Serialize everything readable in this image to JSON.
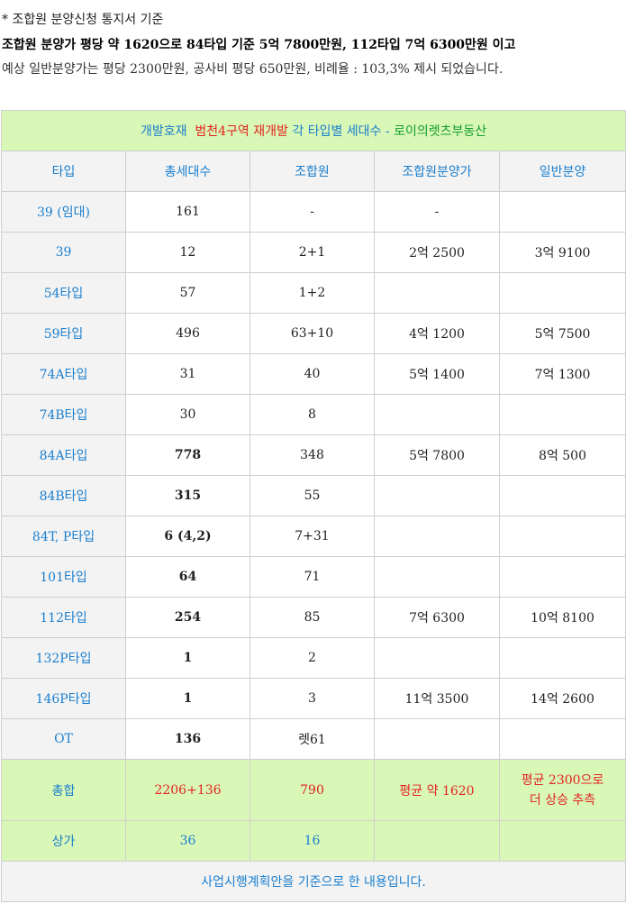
{
  "intro": {
    "line1": "* 조합원 분양신청 통지서 기준",
    "line2": "조합원 분양가 평당 약 1620으로 84타입 기준 5억 7800만원, 112타입 7억 6300만원 이고",
    "line3": "예상 일반분양가는 평당 2300만원, 공사비 평당 650만원, 비례율 : 103,3% 제시 되었습니다."
  },
  "table": {
    "title": {
      "part1": "개발호재",
      "part2": "범천4구역 재개발",
      "part3": "각 타입별 세대수 -",
      "part4": "로이의렛츠부동산"
    },
    "headers": [
      "타입",
      "총세대수",
      "조합원",
      "조합원분양가",
      "일반분양"
    ],
    "rows": [
      {
        "type": "39 (임대)",
        "total": "161",
        "member": "-",
        "member_price": "-",
        "general_price": ""
      },
      {
        "type": "39",
        "total": "12",
        "member": "2+1",
        "member_price": "2억 2500",
        "general_price": "3억 9100"
      },
      {
        "type": "54타입",
        "total": "57",
        "member": "1+2",
        "member_price": "",
        "general_price": ""
      },
      {
        "type": "59타입",
        "total": "496",
        "member": "63+10",
        "member_price": "4억 1200",
        "general_price": "5억 7500"
      },
      {
        "type": "74A타입",
        "total": "31",
        "member": "40",
        "member_price": "5억 1400",
        "general_price": "7억 1300"
      },
      {
        "type": "74B타입",
        "total": "30",
        "member": "8",
        "member_price": "",
        "general_price": ""
      },
      {
        "type": "84A타입",
        "total": "778",
        "member": "348",
        "member_price": "5억 7800",
        "general_price": "8억 500"
      },
      {
        "type": "84B타입",
        "total": "315",
        "member": "55",
        "member_price": "",
        "general_price": ""
      },
      {
        "type": "84T, P타입",
        "total": "6 (4,2)",
        "member": "7+31",
        "member_price": "",
        "general_price": ""
      },
      {
        "type": "101타입",
        "total": "64",
        "member": "71",
        "member_price": "",
        "general_price": ""
      },
      {
        "type": "112타입",
        "total": "254",
        "member": "85",
        "member_price": "7억 6300",
        "general_price": "10억 8100"
      },
      {
        "type": "132P타입",
        "total": "1",
        "member": "2",
        "member_price": "",
        "general_price": ""
      },
      {
        "type": "146P타입",
        "total": "1",
        "member": "3",
        "member_price": "11억 3500",
        "general_price": "14억 2600"
      },
      {
        "type": "OT",
        "total": "136",
        "member": "렛61",
        "member_price": "",
        "general_price": ""
      }
    ],
    "summary": {
      "type": "총합",
      "total": "2206+136",
      "member": "790",
      "member_price": "평균 약 1620",
      "general_line1": "평균 2300으로",
      "general_line2": "더 상승 추측"
    },
    "shop": {
      "type": "상가",
      "total": "36",
      "member": "16",
      "member_price": "",
      "general_price": ""
    },
    "footer": "사업시행계획안을 기준으로 한 내용입니다."
  },
  "colors": {
    "green_bg": "#d9f7b6",
    "blue_text": "#1a7fcf",
    "red_text": "#e32222",
    "green_text": "#129e2e"
  }
}
